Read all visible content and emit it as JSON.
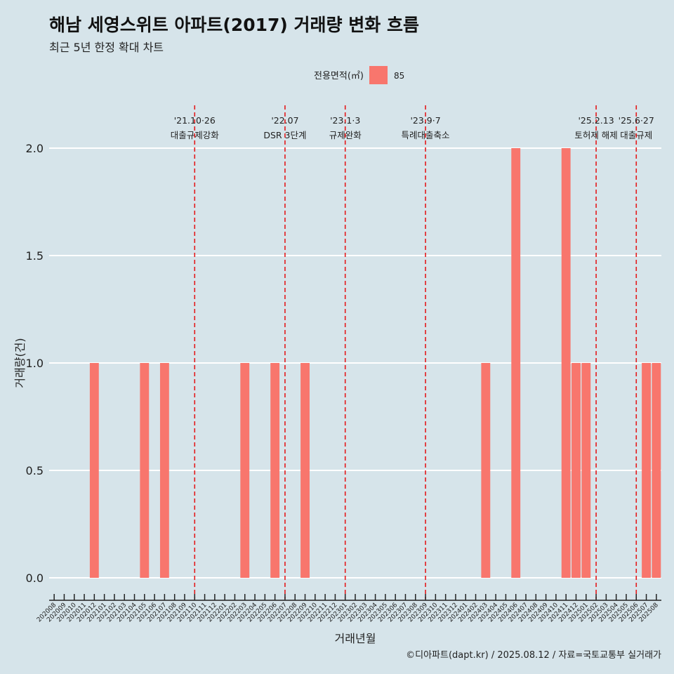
{
  "title": "해남 세영스위트 아파트(2017) 거래량 변화 흐름",
  "subtitle": "최근 5년 한정 확대 차트",
  "caption": "©디아파트(dapt.kr) / 2025.08.12 / 자료=국토교통부 실거래가",
  "colors": {
    "bar": "#f8766d",
    "event_line": "#e41a1c",
    "background": "#d6e4ea",
    "grid": "#ffffff"
  },
  "chart_data": {
    "type": "bar",
    "xlabel": "거래년월",
    "ylabel": "거래량(건)",
    "ylim": [
      0,
      2.0
    ],
    "yticks": [
      "0.0",
      "0.5",
      "1.0",
      "1.5",
      "2.0"
    ],
    "legend": {
      "title": "전용면적(㎡)",
      "position": "top",
      "entries": [
        {
          "label": "85"
        }
      ]
    },
    "categories": [
      "202008",
      "202009",
      "202010",
      "202011",
      "202012",
      "202101",
      "202102",
      "202103",
      "202104",
      "202105",
      "202106",
      "202107",
      "202108",
      "202109",
      "202110",
      "202111",
      "202112",
      "202201",
      "202202",
      "202203",
      "202204",
      "202205",
      "202206",
      "202207",
      "202208",
      "202209",
      "202210",
      "202211",
      "202212",
      "202301",
      "202302",
      "202303",
      "202304",
      "202305",
      "202306",
      "202307",
      "202308",
      "202309",
      "202310",
      "202311",
      "202312",
      "202401",
      "202402",
      "202403",
      "202404",
      "202405",
      "202406",
      "202407",
      "202408",
      "202409",
      "202410",
      "202411",
      "202412",
      "202501",
      "202502",
      "202503",
      "202504",
      "202505",
      "202506",
      "202507",
      "202508"
    ],
    "series": [
      {
        "name": "85",
        "values": [
          0,
          0,
          0,
          0,
          1,
          0,
          0,
          0,
          0,
          1,
          0,
          1,
          0,
          0,
          0,
          0,
          0,
          0,
          0,
          1,
          0,
          0,
          1,
          0,
          0,
          1,
          0,
          0,
          0,
          0,
          0,
          0,
          0,
          0,
          0,
          0,
          0,
          0,
          0,
          0,
          0,
          0,
          0,
          1,
          0,
          0,
          2,
          0,
          0,
          0,
          0,
          2,
          1,
          1,
          0,
          0,
          0,
          0,
          0,
          1,
          1
        ]
      }
    ],
    "events": [
      {
        "date": "202110",
        "line1": "'21.10·26",
        "line2": "대출규제강화"
      },
      {
        "date": "202207",
        "line1": "'22.07",
        "line2": "DSR 3단계"
      },
      {
        "date": "202301",
        "line1": "'23.1·3",
        "line2": "규제완화"
      },
      {
        "date": "202309",
        "line1": "'23.9·7",
        "line2": "특례대출축소"
      },
      {
        "date": "202502",
        "line1": "'25.2.13",
        "line2": "토허제 해제"
      },
      {
        "date": "202506",
        "line1": "'25.6·27",
        "line2": "대출규제"
      }
    ]
  }
}
